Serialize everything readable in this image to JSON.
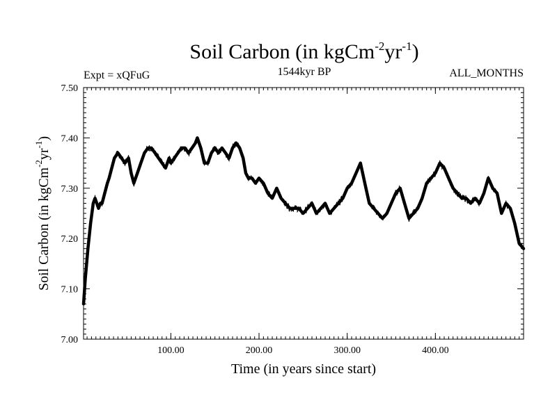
{
  "chart_data": {
    "type": "line",
    "title": {
      "main": "Soil Carbon (in kgCm",
      "sup1": "-2",
      "mid": "yr",
      "sup2": "-1",
      "end": ")"
    },
    "subtitle_left": "Expt = xQFuG",
    "subtitle_center": "1544kyr BP",
    "subtitle_right": "ALL_MONTHS",
    "xlabel": "Time (in years since start)",
    "ylabel": {
      "main": "Soil Carbon (in kgCm",
      "sup1": "-2",
      "mid": "yr",
      "sup2": "-1",
      "end": ")"
    },
    "xlim": [
      1,
      500
    ],
    "ylim": [
      7.0,
      7.5
    ],
    "x_ticks": [
      100,
      200,
      300,
      400
    ],
    "x_tick_labels": [
      "100.00",
      "200.00",
      "300.00",
      "400.00"
    ],
    "y_ticks": [
      7.0,
      7.1,
      7.2,
      7.3,
      7.4,
      7.5
    ],
    "y_tick_labels": [
      "7.00",
      "7.10",
      "7.20",
      "7.30",
      "7.40",
      "7.50"
    ],
    "series": [
      {
        "name": "Soil Carbon",
        "color": "#000000",
        "x": [
          1,
          3,
          6,
          9,
          12,
          14,
          16,
          18,
          20,
          22,
          25,
          28,
          30,
          33,
          36,
          40,
          44,
          48,
          52,
          55,
          58,
          62,
          66,
          70,
          74,
          78,
          82,
          86,
          90,
          94,
          98,
          100,
          104,
          108,
          112,
          116,
          120,
          124,
          128,
          130,
          134,
          138,
          142,
          146,
          150,
          154,
          158,
          162,
          166,
          170,
          174,
          178,
          182,
          185,
          188,
          192,
          196,
          200,
          205,
          210,
          215,
          220,
          225,
          230,
          235,
          240,
          245,
          250,
          255,
          260,
          265,
          270,
          275,
          280,
          285,
          290,
          295,
          300,
          305,
          310,
          315,
          320,
          325,
          330,
          335,
          340,
          345,
          350,
          355,
          360,
          365,
          370,
          375,
          380,
          385,
          390,
          395,
          400,
          405,
          410,
          415,
          420,
          425,
          430,
          435,
          440,
          445,
          450,
          455,
          460,
          465,
          470,
          475,
          480,
          485,
          490,
          495,
          500
        ],
        "y": [
          7.07,
          7.12,
          7.18,
          7.23,
          7.27,
          7.28,
          7.27,
          7.26,
          7.27,
          7.27,
          7.29,
          7.31,
          7.32,
          7.34,
          7.36,
          7.37,
          7.36,
          7.35,
          7.36,
          7.33,
          7.31,
          7.33,
          7.35,
          7.37,
          7.38,
          7.38,
          7.37,
          7.36,
          7.35,
          7.34,
          7.36,
          7.35,
          7.36,
          7.37,
          7.38,
          7.38,
          7.37,
          7.38,
          7.39,
          7.4,
          7.38,
          7.35,
          7.35,
          7.37,
          7.38,
          7.37,
          7.38,
          7.37,
          7.36,
          7.38,
          7.39,
          7.38,
          7.36,
          7.33,
          7.32,
          7.32,
          7.31,
          7.32,
          7.31,
          7.29,
          7.28,
          7.3,
          7.28,
          7.27,
          7.26,
          7.26,
          7.26,
          7.25,
          7.26,
          7.27,
          7.25,
          7.26,
          7.27,
          7.25,
          7.26,
          7.27,
          7.28,
          7.3,
          7.31,
          7.33,
          7.35,
          7.31,
          7.27,
          7.26,
          7.25,
          7.24,
          7.25,
          7.27,
          7.29,
          7.3,
          7.27,
          7.24,
          7.25,
          7.26,
          7.28,
          7.31,
          7.32,
          7.33,
          7.35,
          7.34,
          7.32,
          7.3,
          7.29,
          7.28,
          7.28,
          7.27,
          7.28,
          7.27,
          7.29,
          7.32,
          7.3,
          7.29,
          7.25,
          7.27,
          7.26,
          7.23,
          7.19,
          7.18
        ]
      }
    ]
  }
}
